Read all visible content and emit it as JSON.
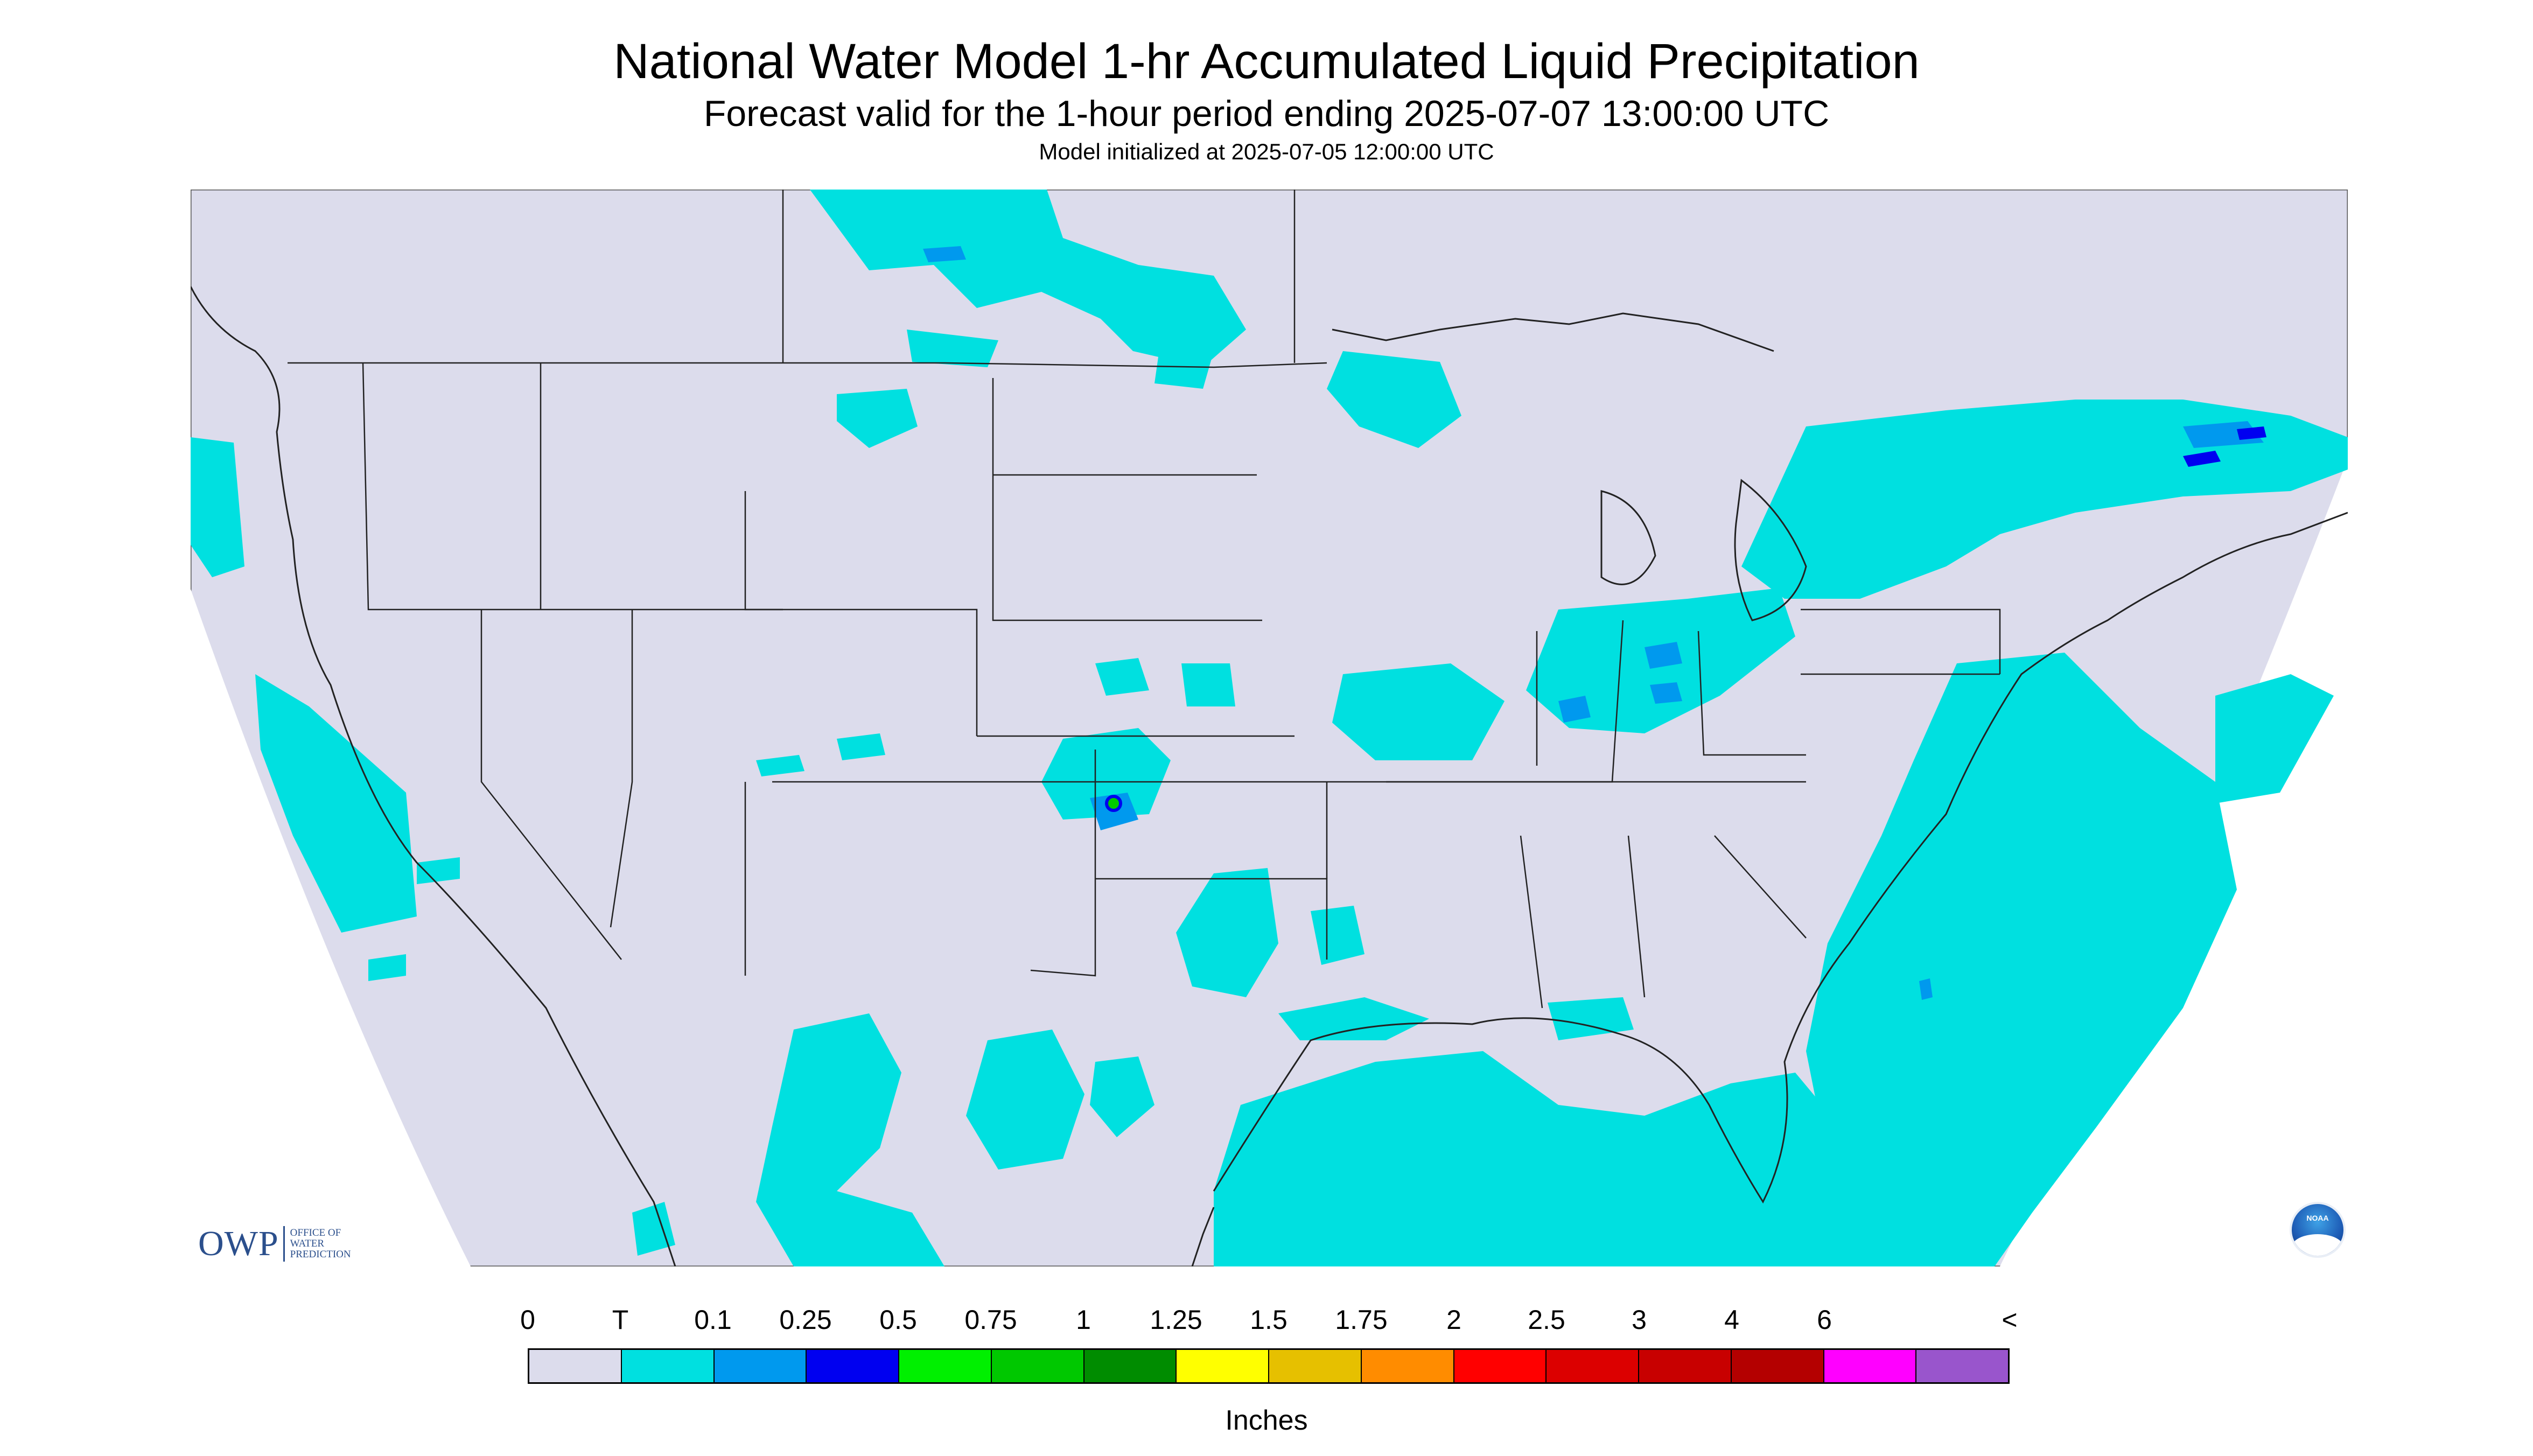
{
  "header": {
    "title": "National Water Model 1-hr Accumulated Liquid Precipitation",
    "subtitle": "Forecast valid for the 1-hour period ending 2025-07-07 13:00:00 UTC",
    "init_line": "Model initialized at 2025-07-05 12:00:00 UTC"
  },
  "map": {
    "background_color": "#dcdcec",
    "outside_color": "#ffffff",
    "precip_color": "#00e0e0",
    "light_blue": "#0099ff",
    "deep_blue": "#0000f0",
    "green": "#00cc00",
    "boundary_color": "#222222"
  },
  "logos": {
    "owp_mark": "OWP",
    "owp_text_lines": [
      "OFFICE OF",
      "WATER",
      "PREDICTION"
    ],
    "noaa_label": "NOAA"
  },
  "legend": {
    "tick_labels": [
      "0",
      "T",
      "0.1",
      "0.25",
      "0.5",
      "0.75",
      "1",
      "1.25",
      "1.5",
      "1.75",
      "2",
      "2.5",
      "3",
      "4",
      "6",
      "<"
    ],
    "colors": [
      "#dcdcec",
      "#00e0e0",
      "#0099ee",
      "#0000f0",
      "#00f000",
      "#00c800",
      "#008c00",
      "#ffff00",
      "#e6c000",
      "#ff8c00",
      "#ff0000",
      "#dc0000",
      "#c80000",
      "#b40000",
      "#ff00ff",
      "#9955cc"
    ],
    "units": "Inches"
  }
}
